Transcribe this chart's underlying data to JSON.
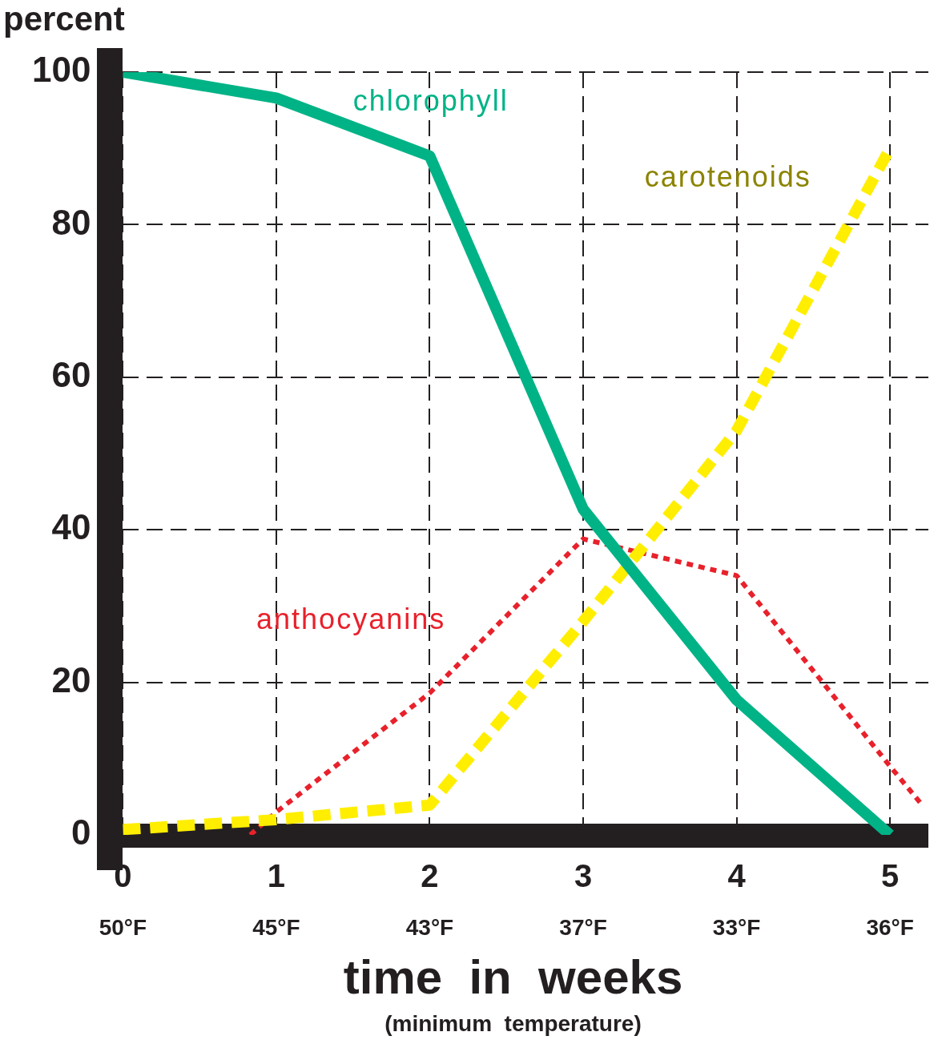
{
  "chart_data": {
    "type": "line",
    "ylabel": "percent",
    "xlabel": "time  in  weeks",
    "annotations": [
      "(minimum  temperature)",
      "50°F",
      "45°F",
      "43°F",
      "37°F",
      "33°F",
      "36°F"
    ],
    "xlim": [
      0,
      5.25
    ],
    "ylim": [
      0,
      100
    ],
    "xticks": [
      0,
      1,
      2,
      3,
      4,
      5
    ],
    "yticks": [
      0,
      20,
      40,
      60,
      80,
      100
    ],
    "grid": true,
    "legend": false,
    "marker": "none",
    "series": [
      {
        "name": "chlorophyll",
        "color": "#00b386",
        "line_style": "solid",
        "x": [
          0,
          1,
          2,
          3,
          4,
          5
        ],
        "values": [
          100,
          96.6,
          89,
          42.7,
          17.7,
          0
        ]
      },
      {
        "name": "carotenoids",
        "color": "#ffee00",
        "line_style": "dashed",
        "x": [
          0,
          1,
          2,
          3,
          4,
          5
        ],
        "values": [
          0.7,
          2,
          3.9,
          28,
          53,
          90
        ]
      },
      {
        "name": "anthocyanins",
        "color": "#e8212b",
        "line_style": "dotted",
        "x": [
          0.83,
          1,
          2,
          3,
          4,
          5,
          5.21
        ],
        "values": [
          0,
          3,
          18.6,
          38.8,
          34,
          9,
          3.9
        ]
      }
    ]
  }
}
